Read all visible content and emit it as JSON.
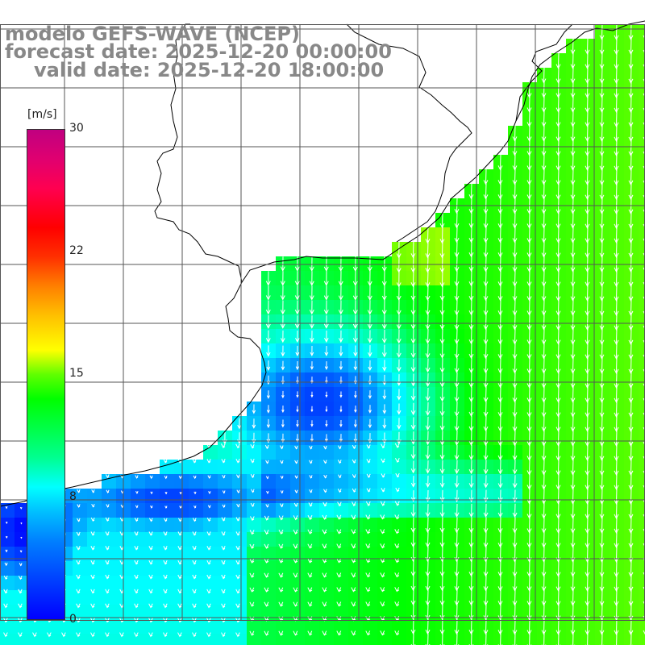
{
  "title": {
    "model": "modelo GEFS-WAVE (NCEP)",
    "forecast": "forecast date: 2025-12-20 00:00:00",
    "valid": "valid date: 2025-12-20 18:00:00"
  },
  "colorbar": {
    "unit": "[m/s]",
    "ticks": [
      "30",
      "22",
      "15",
      "8",
      "0"
    ],
    "tick_values": [
      30,
      22,
      15,
      8,
      0
    ],
    "min": 0,
    "max": 30
  },
  "colors": {
    "coastline": "#000000",
    "grid": "#555555",
    "vector": "#ffffff",
    "title_text": "#888888"
  }
}
